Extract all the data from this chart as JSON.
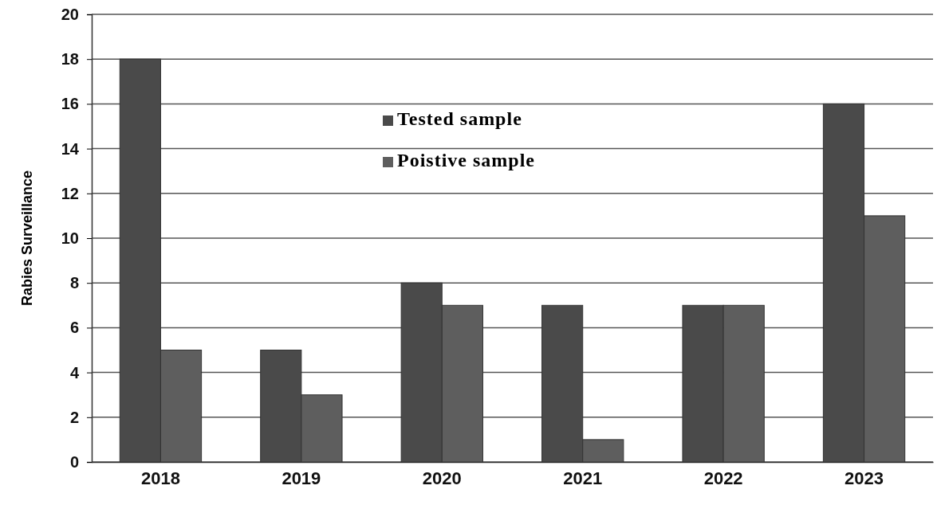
{
  "chart_data": {
    "type": "bar",
    "ylabel": "Rabies Surveillance",
    "categories": [
      "2018",
      "2019",
      "2020",
      "2021",
      "2022",
      "2023"
    ],
    "series": [
      {
        "name": "Tested sample",
        "color": "#4a4a4a",
        "values": [
          18,
          5,
          8,
          7,
          7,
          16
        ]
      },
      {
        "name": "Poistive sample",
        "color": "#5e5e5e",
        "values": [
          5,
          3,
          7,
          1,
          7,
          11
        ]
      }
    ],
    "ylim": [
      0,
      20
    ],
    "yticks": [
      0,
      2,
      4,
      6,
      8,
      10,
      12,
      14,
      16,
      18,
      20
    ],
    "grid": "y",
    "legend": "top"
  }
}
